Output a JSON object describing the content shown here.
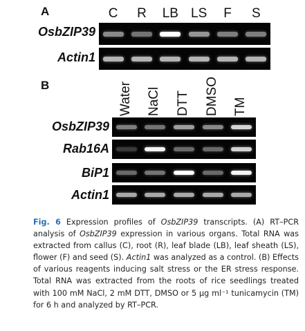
{
  "panel_a": {
    "letter": "A",
    "lanes": [
      "C",
      "R",
      "LB",
      "LS",
      "F",
      "S"
    ],
    "rows": [
      {
        "gene": "OsbZIP39",
        "intensities": [
          0.45,
          0.35,
          1.0,
          0.5,
          0.4,
          0.4
        ]
      },
      {
        "gene": "Actin1",
        "intensities": [
          0.65,
          0.65,
          0.65,
          0.65,
          0.65,
          0.65
        ]
      }
    ]
  },
  "panel_b": {
    "letter": "B",
    "treatments": [
      "Water",
      "NaCl",
      "DTT",
      "DMSO",
      "TM"
    ],
    "rows": [
      {
        "gene": "OsbZIP39",
        "intensities": [
          0.4,
          0.35,
          0.55,
          0.45,
          0.8
        ]
      },
      {
        "gene": "Rab16A",
        "intensities": [
          0.08,
          0.95,
          0.3,
          0.3,
          0.8
        ]
      },
      {
        "gene": "BiP1",
        "intensities": [
          0.3,
          0.35,
          1.0,
          0.3,
          0.95
        ]
      },
      {
        "gene": "Actin1",
        "intensities": [
          0.6,
          0.6,
          0.6,
          0.6,
          0.6
        ]
      }
    ]
  },
  "caption": {
    "label": "Fig. 6",
    "t1": " Expression profiles of ",
    "g1": "OsbZIP39",
    "t2": " transcripts. (A) RT–PCR analysis of ",
    "g2": "OsbZIP39",
    "t3": " expression in various organs. Total RNA was extracted from callus (C), root (R), leaf blade (LB), leaf sheath (LS), flower (F) and seed (S). ",
    "g3": "Actin1",
    "t4": " was analyzed as a control. (B) Effects of various reagents inducing salt stress or the ER stress response. Total RNA was extracted from the roots of rice seedlings treated with 100 mM NaCl, 2 mM DTT, DMSO or 5 µg ml⁻¹ tunicamycin (TM) for 6 h and analyzed by RT–PCR."
  }
}
